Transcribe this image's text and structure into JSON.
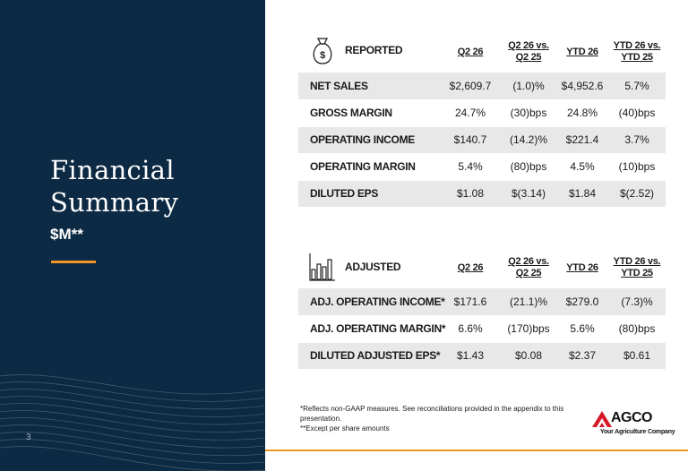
{
  "left": {
    "title": "Financial\nSummary",
    "subtitle": "$M**",
    "page_number": "3"
  },
  "colors": {
    "navy": "#0c2a43",
    "accent": "#f29623",
    "row_shade": "#e8e8e8",
    "logo_red": "#d7182a"
  },
  "icons": {
    "reported": "money-bag-icon",
    "adjusted": "bar-chart-icon"
  },
  "reported": {
    "headers": [
      "REPORTED",
      "Q2 26",
      "Q2 26 vs.\nQ2 25",
      "YTD 26",
      "YTD 26 vs.\nYTD 25"
    ],
    "rows": [
      {
        "label": "NET SALES",
        "values": [
          "$2,609.7",
          "(1.0)%",
          "$4,952.6",
          "5.7%"
        ]
      },
      {
        "label": "GROSS MARGIN",
        "values": [
          "24.7%",
          "(30)bps",
          "24.8%",
          "(40)bps"
        ]
      },
      {
        "label": "OPERATING INCOME",
        "values": [
          "$140.7",
          "(14.2)%",
          "$221.4",
          "3.7%"
        ]
      },
      {
        "label": "OPERATING MARGIN",
        "values": [
          "5.4%",
          "(80)bps",
          "4.5%",
          "(10)bps"
        ]
      },
      {
        "label": "DILUTED EPS",
        "values": [
          "$1.08",
          "$(3.14)",
          "$1.84",
          "$(2.52)"
        ]
      }
    ]
  },
  "adjusted": {
    "headers": [
      "ADJUSTED",
      "Q2 26",
      "Q2 26 vs.\nQ2 25",
      "YTD 26",
      "YTD 26 vs.\nYTD 25"
    ],
    "rows": [
      {
        "label": "ADJ. OPERATING INCOME*",
        "values": [
          "$171.6",
          "(21.1)%",
          "$279.0",
          "(7.3)%"
        ]
      },
      {
        "label": "ADJ. OPERATING MARGIN*",
        "values": [
          "6.6%",
          "(170)bps",
          "5.6%",
          "(80)bps"
        ]
      },
      {
        "label": "DILUTED ADJUSTED EPS*",
        "values": [
          "$1.43",
          "$0.08",
          "$2.37",
          "$0.61"
        ]
      }
    ]
  },
  "footnotes": [
    "*Reflects non-GAAP measures. See reconciliations provided in the appendix to this presentation.",
    "**Except per share amounts"
  ],
  "logo": {
    "name": "AGCO",
    "tagline": "Your Agriculture Company"
  }
}
